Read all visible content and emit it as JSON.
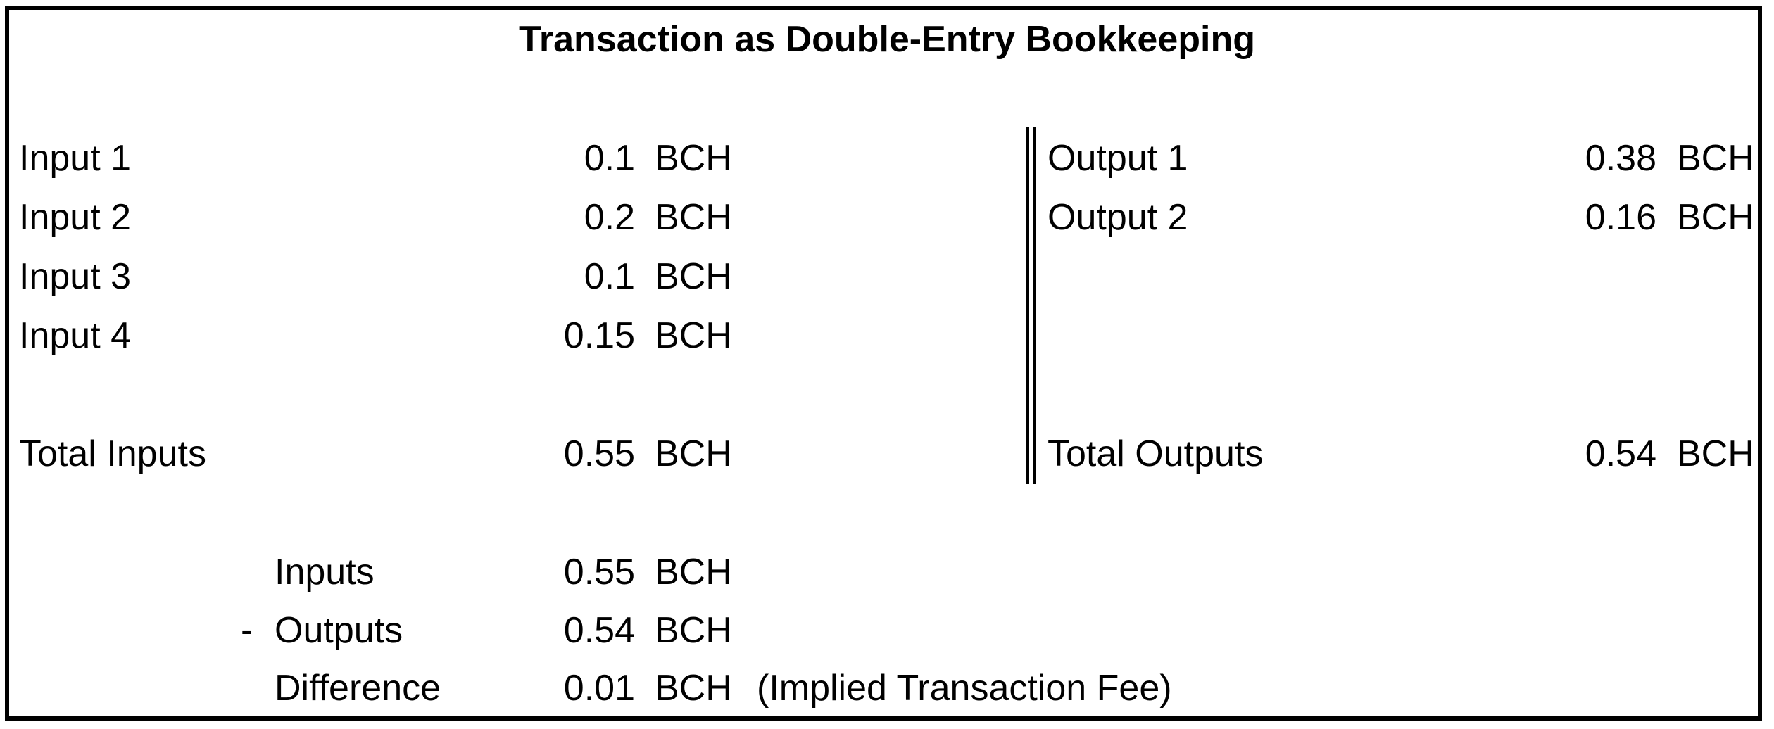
{
  "title": "Transaction as Double-Entry Bookkeeping",
  "unit": "BCH",
  "inputs": [
    {
      "label": "Input 1",
      "value": "0.1"
    },
    {
      "label": "Input 2",
      "value": "0.2"
    },
    {
      "label": "Input 3",
      "value": "0.1"
    },
    {
      "label": "Input 4",
      "value": "0.15"
    }
  ],
  "outputs": [
    {
      "label": "Output 1",
      "value": "0.38"
    },
    {
      "label": "Output 2",
      "value": "0.16"
    }
  ],
  "total_inputs": {
    "label": "Total Inputs",
    "value": "0.55"
  },
  "total_outputs": {
    "label": "Total Outputs",
    "value": "0.54"
  },
  "summary": {
    "inputs": {
      "label": "Inputs",
      "value": "0.55"
    },
    "minus_sign": "-",
    "outputs": {
      "label": "Outputs",
      "value": "0.54"
    },
    "difference": {
      "label": "Difference",
      "value": "0.01",
      "note": "(Implied Transaction Fee)"
    }
  }
}
